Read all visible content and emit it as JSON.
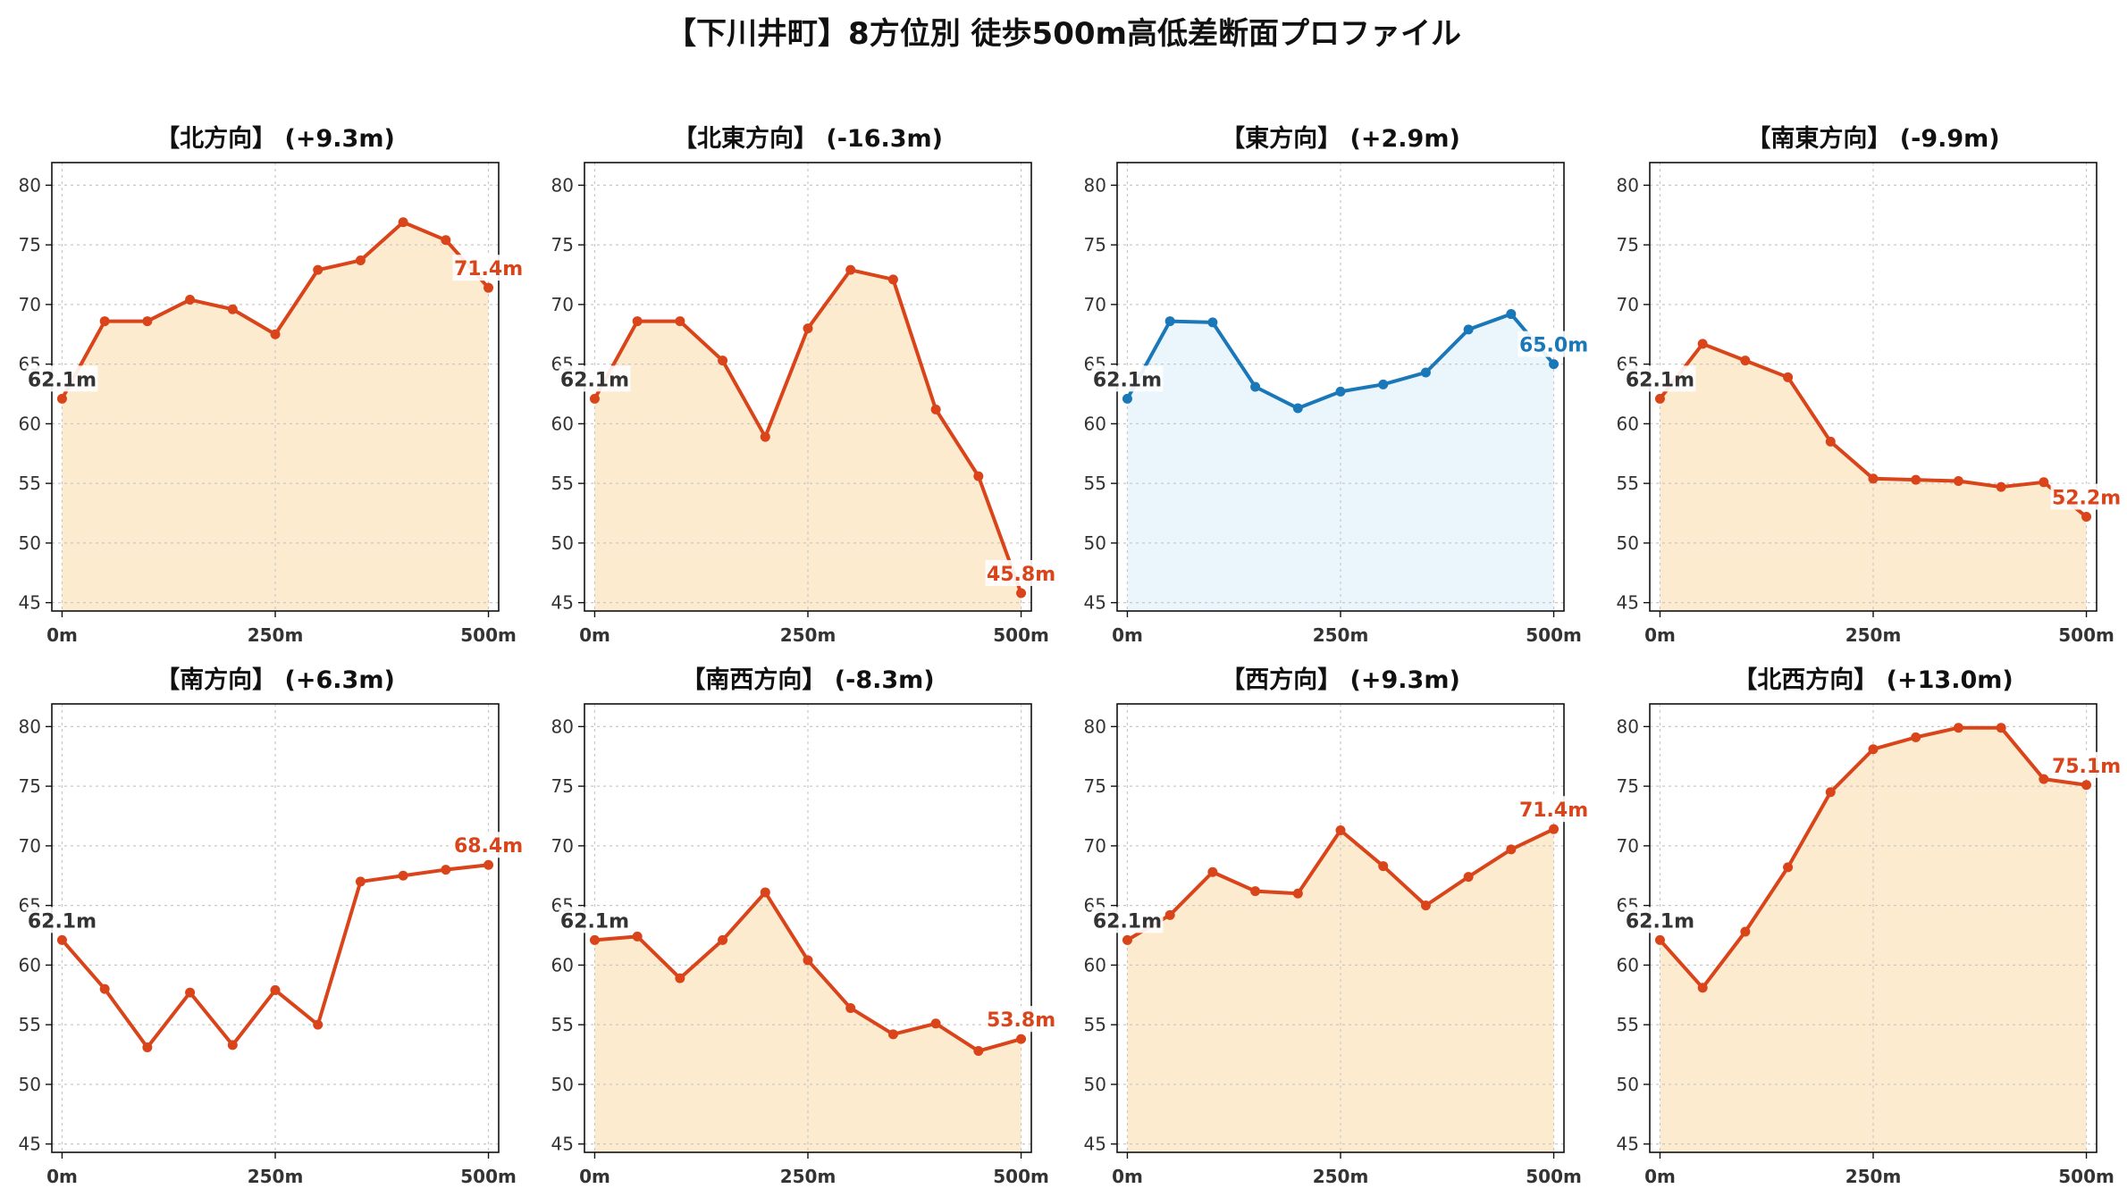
{
  "title": "【下川井町】8方位別 徒歩500m高低差断面プロファイル",
  "colors": {
    "up_line": "#d9441a",
    "up_fill": "#fdebd0",
    "flat_line": "#1a78b8",
    "flat_fill": "#eaf6fc",
    "start_label": "#333333"
  },
  "chart_data": [
    {
      "type": "area",
      "title": "【北方向】 (+9.3m)",
      "style": "up",
      "x": [
        0,
        50,
        100,
        150,
        200,
        250,
        300,
        350,
        400,
        450,
        500
      ],
      "y": [
        62.1,
        68.6,
        68.6,
        70.4,
        69.6,
        67.5,
        72.9,
        73.7,
        76.9,
        75.4,
        71.4
      ],
      "start_label": "62.1m",
      "end_label": "71.4m",
      "xticks": [
        0,
        250,
        500
      ],
      "xtick_labels": [
        "0m",
        "250m",
        "500m"
      ],
      "yticks": [
        45,
        50,
        55,
        60,
        65,
        70,
        75,
        80
      ],
      "xlim": [
        -12,
        512
      ],
      "ylim": [
        44.3,
        81.9
      ],
      "grid": true
    },
    {
      "type": "area",
      "title": "【北東方向】 (-16.3m)",
      "style": "up",
      "x": [
        0,
        50,
        100,
        150,
        200,
        250,
        300,
        350,
        400,
        450,
        500
      ],
      "y": [
        62.1,
        68.6,
        68.6,
        65.3,
        58.9,
        68.0,
        72.9,
        72.1,
        61.2,
        55.6,
        45.8
      ],
      "start_label": "62.1m",
      "end_label": "45.8m",
      "xticks": [
        0,
        250,
        500
      ],
      "xtick_labels": [
        "0m",
        "250m",
        "500m"
      ],
      "yticks": [
        45,
        50,
        55,
        60,
        65,
        70,
        75,
        80
      ],
      "xlim": [
        -12,
        512
      ],
      "ylim": [
        44.3,
        81.9
      ],
      "grid": true
    },
    {
      "type": "area",
      "title": "【東方向】 (+2.9m)",
      "style": "flat",
      "x": [
        0,
        50,
        100,
        150,
        200,
        250,
        300,
        350,
        400,
        450,
        500
      ],
      "y": [
        62.1,
        68.6,
        68.5,
        63.1,
        61.3,
        62.7,
        63.3,
        64.3,
        67.9,
        69.2,
        65.0
      ],
      "start_label": "62.1m",
      "end_label": "65.0m",
      "xticks": [
        0,
        250,
        500
      ],
      "xtick_labels": [
        "0m",
        "250m",
        "500m"
      ],
      "yticks": [
        45,
        50,
        55,
        60,
        65,
        70,
        75,
        80
      ],
      "xlim": [
        -12,
        512
      ],
      "ylim": [
        44.3,
        81.9
      ],
      "grid": true
    },
    {
      "type": "area",
      "title": "【南東方向】 (-9.9m)",
      "style": "up",
      "x": [
        0,
        50,
        100,
        150,
        200,
        250,
        300,
        350,
        400,
        450,
        500
      ],
      "y": [
        62.1,
        66.7,
        65.3,
        63.9,
        58.5,
        55.4,
        55.3,
        55.2,
        54.7,
        55.1,
        52.2
      ],
      "start_label": "62.1m",
      "end_label": "52.2m",
      "xticks": [
        0,
        250,
        500
      ],
      "xtick_labels": [
        "0m",
        "250m",
        "500m"
      ],
      "yticks": [
        45,
        50,
        55,
        60,
        65,
        70,
        75,
        80
      ],
      "xlim": [
        -12,
        512
      ],
      "ylim": [
        44.3,
        81.9
      ],
      "grid": true
    },
    {
      "type": "line",
      "title": "【南方向】 (+6.3m)",
      "style": "up_nofill",
      "x": [
        0,
        50,
        100,
        150,
        200,
        250,
        300,
        350,
        400,
        450,
        500
      ],
      "y": [
        62.1,
        58.0,
        53.1,
        57.7,
        53.3,
        57.9,
        55.0,
        67.0,
        67.5,
        68.0,
        68.4
      ],
      "start_label": "62.1m",
      "end_label": "68.4m",
      "xticks": [
        0,
        250,
        500
      ],
      "xtick_labels": [
        "0m",
        "250m",
        "500m"
      ],
      "yticks": [
        45,
        50,
        55,
        60,
        65,
        70,
        75,
        80
      ],
      "xlim": [
        -12,
        512
      ],
      "ylim": [
        44.3,
        81.9
      ],
      "grid": true
    },
    {
      "type": "area",
      "title": "【南西方向】 (-8.3m)",
      "style": "up",
      "x": [
        0,
        50,
        100,
        150,
        200,
        250,
        300,
        350,
        400,
        450,
        500
      ],
      "y": [
        62.1,
        62.4,
        58.9,
        62.1,
        66.1,
        60.4,
        56.4,
        54.2,
        55.1,
        52.8,
        53.8
      ],
      "start_label": "62.1m",
      "end_label": "53.8m",
      "xticks": [
        0,
        250,
        500
      ],
      "xtick_labels": [
        "0m",
        "250m",
        "500m"
      ],
      "yticks": [
        45,
        50,
        55,
        60,
        65,
        70,
        75,
        80
      ],
      "xlim": [
        -12,
        512
      ],
      "ylim": [
        44.3,
        81.9
      ],
      "grid": true
    },
    {
      "type": "area",
      "title": "【西方向】 (+9.3m)",
      "style": "up",
      "x": [
        0,
        50,
        100,
        150,
        200,
        250,
        300,
        350,
        400,
        450,
        500
      ],
      "y": [
        62.1,
        64.2,
        67.8,
        66.2,
        66.0,
        71.3,
        68.3,
        65.0,
        67.4,
        69.7,
        71.4
      ],
      "start_label": "62.1m",
      "end_label": "71.4m",
      "xticks": [
        0,
        250,
        500
      ],
      "xtick_labels": [
        "0m",
        "250m",
        "500m"
      ],
      "yticks": [
        45,
        50,
        55,
        60,
        65,
        70,
        75,
        80
      ],
      "xlim": [
        -12,
        512
      ],
      "ylim": [
        44.3,
        81.9
      ],
      "grid": true
    },
    {
      "type": "area",
      "title": "【北西方向】 (+13.0m)",
      "style": "up",
      "x": [
        0,
        50,
        100,
        150,
        200,
        250,
        300,
        350,
        400,
        450,
        500
      ],
      "y": [
        62.1,
        58.1,
        62.8,
        68.2,
        74.5,
        78.1,
        79.1,
        79.9,
        79.9,
        75.6,
        75.1
      ],
      "start_label": "62.1m",
      "end_label": "75.1m",
      "xticks": [
        0,
        250,
        500
      ],
      "xtick_labels": [
        "0m",
        "250m",
        "500m"
      ],
      "yticks": [
        45,
        50,
        55,
        60,
        65,
        70,
        75,
        80
      ],
      "xlim": [
        -12,
        512
      ],
      "ylim": [
        44.3,
        81.9
      ],
      "grid": true
    }
  ]
}
